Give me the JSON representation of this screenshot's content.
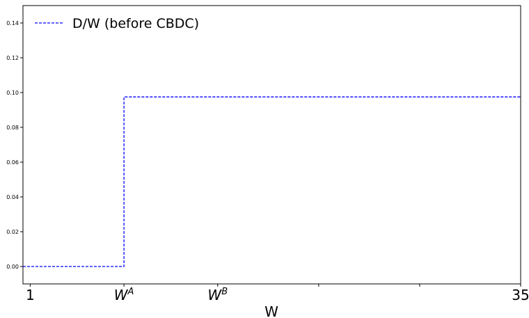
{
  "chart_data": {
    "type": "line",
    "title": "",
    "xlabel": "W",
    "ylabel": "",
    "xlim": [
      0.5,
      35
    ],
    "ylim": [
      -0.01,
      0.15
    ],
    "grid": false,
    "legend_position": "top-left",
    "yticks": [
      0.0,
      0.02,
      0.04,
      0.06,
      0.08,
      0.1,
      0.12,
      0.14
    ],
    "ytick_labels": [
      "0.00",
      "0.02",
      "0.04",
      "0.06",
      "0.08",
      "0.10",
      "0.12",
      "0.14"
    ],
    "xticks": [
      {
        "value": 1,
        "label": "1",
        "superscript": ""
      },
      {
        "value": 7.5,
        "label": "W",
        "superscript": "A"
      },
      {
        "value": 14,
        "label": "W",
        "superscript": "B"
      },
      {
        "value": 21,
        "label": "",
        "superscript": ""
      },
      {
        "value": 28,
        "label": "",
        "superscript": ""
      },
      {
        "value": 35,
        "label": "35",
        "superscript": ""
      }
    ],
    "series": [
      {
        "name": "D/W (before CBDC)",
        "color": "#0000ff",
        "style": "dashed",
        "x": [
          0.5,
          7.5,
          7.5,
          35
        ],
        "y": [
          0.0,
          0.0,
          0.0975,
          0.0975
        ]
      }
    ]
  }
}
